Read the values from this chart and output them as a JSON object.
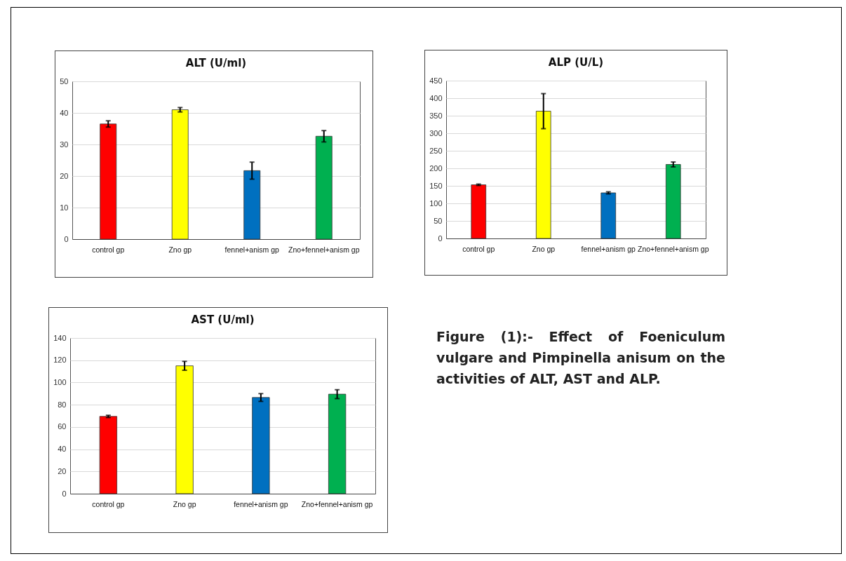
{
  "chart_data": [
    {
      "type": "bar",
      "title": "ALT (U/ml)",
      "categories": [
        "control gp",
        "Zno gp",
        "fennel+anism gp",
        "Zno+fennel+anism gp"
      ],
      "values": [
        36.5,
        41,
        21.7,
        32.6
      ],
      "errors": [
        1,
        0.7,
        2.7,
        1.8
      ],
      "colors": [
        "#ff0000",
        "#ffff00",
        "#0070c0",
        "#00b050"
      ],
      "ylim": [
        0,
        50
      ],
      "yticks": [
        0,
        10,
        20,
        30,
        40,
        50
      ],
      "grid": "y"
    },
    {
      "type": "bar",
      "title": "ALP (U/L)",
      "categories": [
        "control gp",
        "Zno gp",
        "fennel+anism gp",
        "Zno+fennel+anism gp"
      ],
      "values": [
        153,
        363,
        130,
        211
      ],
      "errors": [
        2,
        50,
        3,
        7
      ],
      "colors": [
        "#ff0000",
        "#ffff00",
        "#0070c0",
        "#00b050"
      ],
      "ylim": [
        0,
        450
      ],
      "yticks": [
        0,
        50,
        100,
        150,
        200,
        250,
        300,
        350,
        400,
        450
      ],
      "grid": "y"
    },
    {
      "type": "bar",
      "title": "AST (U/ml)",
      "categories": [
        "control gp",
        "Zno gp",
        "fennel+anism gp",
        "Zno+fennel+anism gp"
      ],
      "values": [
        69.5,
        115,
        86.5,
        89.5
      ],
      "errors": [
        1,
        4,
        3.5,
        4
      ],
      "colors": [
        "#ff0000",
        "#ffff00",
        "#0070c0",
        "#00b050"
      ],
      "ylim": [
        0,
        140
      ],
      "yticks": [
        0,
        20,
        40,
        60,
        80,
        100,
        120,
        140
      ],
      "grid": "y"
    },
    {
      "type": "other",
      "annotations": [
        "Figure (1):- Effect of Foeniculum vulgare and Pimpinella anisum on the activities of ALT, AST and ALP."
      ]
    }
  ]
}
